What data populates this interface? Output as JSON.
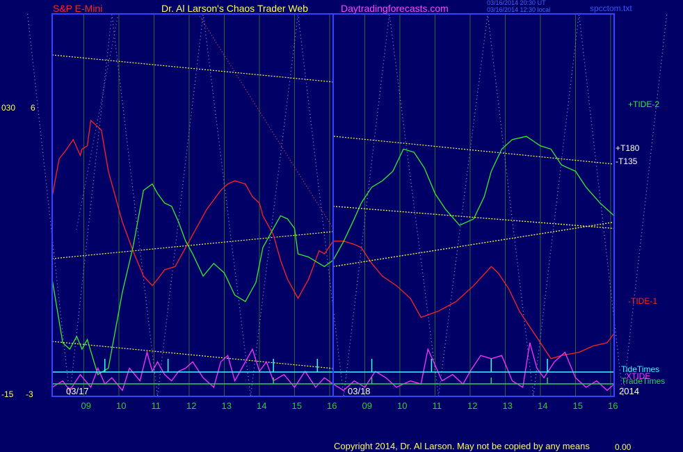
{
  "header": {
    "symbol": "S&P E-Mini",
    "title": "Dr. Al Larson's Chaos Trader Web",
    "site": "Daytradingforecasts.com",
    "stamp1": "03/16/2014 20:30 UT",
    "stamp2": "03/16/2014 12:30 local",
    "file": "spcctom.txt"
  },
  "left_axis": {
    "top_a": "030",
    "top_b": "6",
    "bot_a": "-15",
    "bot_b": "-3"
  },
  "series_labels": {
    "tide2": "+TIDE-2",
    "t180": "+T180",
    "t135": "-T135",
    "tide1": "-TIDE-1",
    "tidetimes": "TideTimes",
    "xtide": "XTIDE",
    "tradetimes": "TradeTimes"
  },
  "colors": {
    "background": "#000066",
    "frame": "#3344ff",
    "grid": "#336633",
    "tide1": "#ff2222",
    "tide2": "#33ee33",
    "xtide": "#ff33ff",
    "tidetimes": "#33ffff",
    "tradetimes": "#33cc66",
    "trend": "#ffff55",
    "dotted": "#9999ff"
  },
  "footer": {
    "copyright": "Copyright 2014, Dr. Al Larson. May not be copied by any means",
    "stamp": "0.00"
  },
  "chart_data": {
    "type": "line",
    "title": "S&P E-Mini",
    "dates": [
      "03/17",
      "03/18"
    ],
    "year": "2014",
    "x_ticks": [
      "09",
      "10",
      "11",
      "12",
      "13",
      "14",
      "15",
      "16",
      "09",
      "10",
      "11",
      "12",
      "13",
      "14",
      "15",
      "16"
    ],
    "x_range": [
      0,
      16
    ],
    "y_range": [
      -3,
      6
    ],
    "y_ticks": [
      "6",
      "-3"
    ],
    "series": [
      {
        "name": "-TIDE-1",
        "x": [
          0.0,
          0.2,
          0.35,
          0.6,
          0.8,
          0.85,
          1.0,
          1.1,
          1.4,
          1.6,
          1.8,
          2.0,
          2.3,
          2.6,
          2.85,
          3.0,
          3.2,
          3.5,
          3.7,
          4.0,
          4.4,
          4.8,
          5.0,
          5.2,
          5.5,
          5.7,
          5.9,
          6.0,
          6.3,
          6.5,
          6.7,
          7.0,
          7.3,
          7.6,
          7.75,
          8.0,
          8.3,
          8.6,
          8.8,
          9.1,
          9.4,
          9.8,
          10.2,
          10.5,
          11.0,
          11.5,
          12.0,
          12.5,
          12.7,
          13.0,
          13.3,
          13.6,
          13.9,
          14.2,
          14.5,
          15.0,
          15.4,
          15.8,
          16.0
        ],
        "y": [
          3.2,
          4.4,
          4.6,
          5.0,
          4.5,
          4.7,
          4.8,
          5.6,
          5.3,
          4.0,
          3.2,
          2.4,
          1.5,
          0.7,
          0.4,
          0.6,
          0.9,
          1.0,
          1.4,
          2.0,
          2.8,
          3.4,
          3.6,
          3.7,
          3.6,
          3.2,
          3.0,
          2.6,
          2.0,
          1.2,
          0.6,
          0.0,
          0.6,
          1.5,
          1.4,
          1.8,
          1.8,
          1.7,
          1.6,
          1.1,
          0.7,
          0.4,
          0.0,
          -0.6,
          -0.4,
          -0.1,
          0.4,
          1.0,
          0.8,
          0.3,
          -0.4,
          -0.9,
          -1.4,
          -1.9,
          -1.8,
          -1.7,
          -1.5,
          -1.4,
          -1.1
        ]
      },
      {
        "name": "+TIDE-2",
        "x": [
          0.0,
          0.3,
          0.5,
          0.7,
          0.85,
          1.0,
          1.3,
          1.6,
          1.8,
          2.0,
          2.3,
          2.6,
          2.85,
          3.0,
          3.2,
          3.4,
          3.6,
          3.8,
          4.0,
          4.3,
          4.6,
          4.9,
          5.2,
          5.5,
          5.8,
          6.0,
          6.3,
          6.5,
          6.7,
          6.9,
          7.0,
          7.3,
          7.6,
          7.75,
          8.0,
          8.3,
          8.6,
          8.8,
          9.1,
          9.4,
          9.7,
          10.0,
          10.3,
          10.6,
          10.9,
          11.2,
          11.6,
          12.0,
          12.3,
          12.5,
          12.8,
          13.1,
          13.5,
          13.9,
          14.2,
          14.5,
          14.9,
          15.2,
          15.6,
          16.0
        ],
        "y": [
          0.6,
          -1.4,
          -1.6,
          -1.2,
          -1.6,
          -1.3,
          -2.4,
          -2.2,
          -1.0,
          0.2,
          1.6,
          3.4,
          3.6,
          3.3,
          3.0,
          2.9,
          2.4,
          1.8,
          1.4,
          0.7,
          1.1,
          0.8,
          0.1,
          -0.1,
          0.5,
          1.6,
          2.2,
          2.6,
          2.5,
          2.2,
          1.4,
          1.3,
          1.1,
          1.0,
          1.2,
          1.8,
          2.5,
          3.0,
          3.5,
          3.7,
          4.0,
          4.7,
          4.6,
          4.1,
          3.3,
          2.8,
          2.3,
          2.5,
          3.2,
          4.0,
          4.7,
          5.0,
          5.1,
          4.8,
          4.7,
          4.2,
          4.0,
          3.5,
          3.0,
          2.6
        ]
      },
      {
        "name": "XTIDE",
        "x": [
          0.0,
          0.3,
          0.5,
          0.8,
          1.1,
          1.3,
          1.5,
          1.7,
          2.0,
          2.2,
          2.5,
          2.7,
          2.85,
          3.0,
          3.2,
          3.4,
          3.6,
          3.8,
          4.0,
          4.3,
          4.6,
          4.8,
          5.0,
          5.2,
          5.4,
          5.7,
          5.9,
          6.1,
          6.3,
          6.6,
          6.9,
          7.2,
          7.5,
          7.75,
          8.0,
          8.3,
          8.6,
          8.9,
          9.2,
          9.5,
          9.8,
          10.2,
          10.5,
          10.7,
          10.9,
          11.1,
          11.4,
          11.7,
          11.9,
          12.2,
          12.5,
          12.8,
          13.1,
          13.4,
          13.6,
          13.8,
          14.0,
          14.3,
          14.6,
          14.9,
          15.2,
          15.5,
          15.8,
          16.0
        ],
        "y": [
          -2.8,
          -2.6,
          -2.9,
          -2.4,
          -2.8,
          -2.2,
          -2.7,
          -2.5,
          -2.9,
          -2.2,
          -2.6,
          -1.7,
          -2.3,
          -2.0,
          -2.4,
          -2.6,
          -2.3,
          -2.2,
          -2.0,
          -2.5,
          -2.8,
          -2.0,
          -1.8,
          -2.6,
          -2.2,
          -1.6,
          -2.3,
          -2.0,
          -2.6,
          -2.4,
          -2.8,
          -2.3,
          -2.8,
          -2.5,
          -2.7,
          -2.9,
          -2.6,
          -2.8,
          -2.3,
          -2.5,
          -2.8,
          -2.6,
          -2.7,
          -1.6,
          -2.1,
          -2.6,
          -2.4,
          -2.7,
          -2.3,
          -1.8,
          -1.9,
          -1.8,
          -2.6,
          -2.8,
          -1.4,
          -2.2,
          -2.5,
          -2.0,
          -1.7,
          -2.5,
          -2.8,
          -2.6,
          -2.9,
          -2.7
        ]
      },
      {
        "name": "+T180",
        "x": [
          8.0,
          16.0
        ],
        "y": [
          1.0,
          2.4
        ]
      },
      {
        "name": "-T135",
        "x": [
          8.0,
          16.0
        ],
        "y": [
          2.9,
          2.2
        ]
      }
    ],
    "grid": true
  }
}
